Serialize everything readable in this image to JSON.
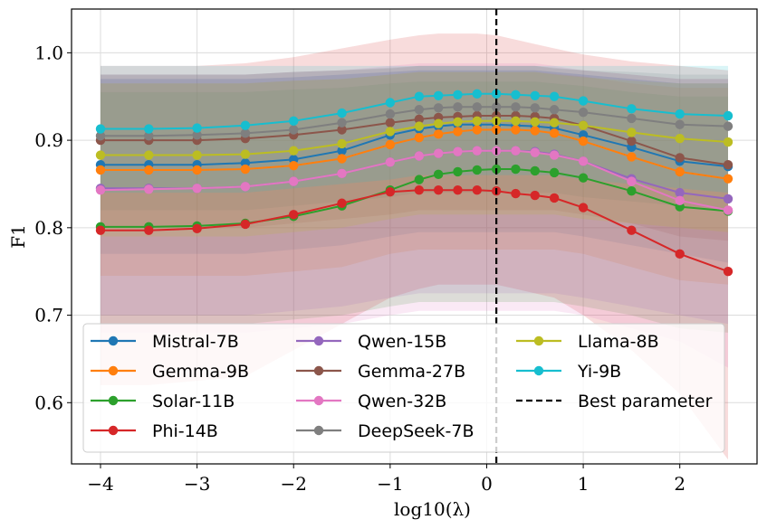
{
  "chart_data": {
    "type": "line",
    "title": "",
    "xlabel": "log10(λ)",
    "ylabel": "F1",
    "xlim": [
      -4.3,
      2.8
    ],
    "ylim": [
      0.53,
      1.05
    ],
    "xticks": [
      -4,
      -3,
      -2,
      -1,
      0,
      1,
      2
    ],
    "xtick_labels": [
      "−4",
      "−3",
      "−2",
      "−1",
      "0",
      "1",
      "2"
    ],
    "yticks": [
      0.6,
      0.7,
      0.8,
      0.9,
      1.0
    ],
    "ytick_labels": [
      "0.6",
      "0.7",
      "0.8",
      "0.9",
      "1.0"
    ],
    "grid": true,
    "legend_position": "bottom-center",
    "legend_columns": 3,
    "x": [
      -4,
      -3.5,
      -3,
      -2.5,
      -2,
      -1.5,
      -1,
      -0.7,
      -0.5,
      -0.3,
      -0.1,
      0.1,
      0.3,
      0.5,
      0.7,
      1,
      1.5,
      2,
      2.5
    ],
    "series": [
      {
        "name": "Mistral-7B",
        "color": "#1f77b4",
        "values": [
          0.872,
          0.872,
          0.872,
          0.874,
          0.878,
          0.888,
          0.906,
          0.913,
          0.916,
          0.918,
          0.918,
          0.918,
          0.917,
          0.916,
          0.914,
          0.906,
          0.892,
          0.876,
          0.87
        ],
        "band": [
          [
            0.77,
            0.97
          ],
          [
            0.77,
            0.97
          ],
          [
            0.77,
            0.97
          ],
          [
            0.77,
            0.97
          ],
          [
            0.775,
            0.972
          ],
          [
            0.78,
            0.975
          ],
          [
            0.79,
            0.978
          ],
          [
            0.795,
            0.98
          ],
          [
            0.795,
            0.98
          ],
          [
            0.795,
            0.98
          ],
          [
            0.795,
            0.98
          ],
          [
            0.795,
            0.98
          ],
          [
            0.795,
            0.98
          ],
          [
            0.795,
            0.98
          ],
          [
            0.795,
            0.978
          ],
          [
            0.79,
            0.975
          ],
          [
            0.78,
            0.97
          ],
          [
            0.77,
            0.965
          ],
          [
            0.76,
            0.965
          ]
        ]
      },
      {
        "name": "Gemma-9B",
        "color": "#ff7f0e",
        "values": [
          0.866,
          0.866,
          0.866,
          0.867,
          0.871,
          0.879,
          0.895,
          0.903,
          0.907,
          0.91,
          0.912,
          0.912,
          0.912,
          0.911,
          0.908,
          0.899,
          0.881,
          0.864,
          0.856
        ],
        "band": [
          [
            0.745,
            0.965
          ],
          [
            0.745,
            0.965
          ],
          [
            0.745,
            0.965
          ],
          [
            0.745,
            0.965
          ],
          [
            0.75,
            0.968
          ],
          [
            0.755,
            0.97
          ],
          [
            0.77,
            0.975
          ],
          [
            0.775,
            0.978
          ],
          [
            0.775,
            0.978
          ],
          [
            0.775,
            0.978
          ],
          [
            0.775,
            0.978
          ],
          [
            0.775,
            0.978
          ],
          [
            0.775,
            0.978
          ],
          [
            0.775,
            0.978
          ],
          [
            0.775,
            0.976
          ],
          [
            0.77,
            0.973
          ],
          [
            0.755,
            0.965
          ],
          [
            0.74,
            0.96
          ],
          [
            0.735,
            0.96
          ]
        ]
      },
      {
        "name": "Solar-11B",
        "color": "#2ca02c",
        "values": [
          0.801,
          0.801,
          0.802,
          0.805,
          0.813,
          0.825,
          0.843,
          0.855,
          0.861,
          0.864,
          0.866,
          0.867,
          0.867,
          0.865,
          0.863,
          0.857,
          0.842,
          0.824,
          0.819
        ],
        "band": [
          [
            0.69,
            0.955
          ],
          [
            0.69,
            0.955
          ],
          [
            0.69,
            0.955
          ],
          [
            0.69,
            0.955
          ],
          [
            0.695,
            0.958
          ],
          [
            0.7,
            0.96
          ],
          [
            0.71,
            0.965
          ],
          [
            0.715,
            0.967
          ],
          [
            0.715,
            0.967
          ],
          [
            0.715,
            0.967
          ],
          [
            0.715,
            0.967
          ],
          [
            0.715,
            0.967
          ],
          [
            0.715,
            0.967
          ],
          [
            0.715,
            0.967
          ],
          [
            0.715,
            0.965
          ],
          [
            0.71,
            0.962
          ],
          [
            0.7,
            0.955
          ],
          [
            0.685,
            0.95
          ],
          [
            0.68,
            0.95
          ]
        ]
      },
      {
        "name": "Phi-14B",
        "color": "#d62728",
        "values": [
          0.797,
          0.797,
          0.799,
          0.804,
          0.815,
          0.828,
          0.841,
          0.843,
          0.843,
          0.843,
          0.843,
          0.842,
          0.839,
          0.837,
          0.834,
          0.823,
          0.797,
          0.77,
          0.75
        ],
        "band": [
          [
            0.62,
            0.985
          ],
          [
            0.62,
            0.985
          ],
          [
            0.625,
            0.985
          ],
          [
            0.63,
            0.988
          ],
          [
            0.66,
            0.995
          ],
          [
            0.69,
            1.005
          ],
          [
            0.72,
            1.015
          ],
          [
            0.73,
            1.02
          ],
          [
            0.735,
            1.022
          ],
          [
            0.735,
            1.022
          ],
          [
            0.735,
            1.022
          ],
          [
            0.735,
            1.02
          ],
          [
            0.73,
            1.015
          ],
          [
            0.725,
            1.01
          ],
          [
            0.72,
            1.005
          ],
          [
            0.7,
            0.998
          ],
          [
            0.66,
            0.99
          ],
          [
            0.61,
            0.985
          ],
          [
            0.535,
            0.98
          ]
        ]
      },
      {
        "name": "Qwen-15B",
        "color": "#9467bd",
        "values": [
          0.845,
          0.845,
          0.845,
          0.847,
          0.853,
          0.862,
          0.875,
          0.882,
          0.885,
          0.887,
          0.888,
          0.888,
          0.888,
          0.887,
          0.884,
          0.876,
          0.856,
          0.84,
          0.833
        ],
        "band": [
          [
            0.7,
            0.97
          ],
          [
            0.7,
            0.97
          ],
          [
            0.7,
            0.97
          ],
          [
            0.7,
            0.97
          ],
          [
            0.705,
            0.972
          ],
          [
            0.71,
            0.975
          ],
          [
            0.72,
            0.978
          ],
          [
            0.725,
            0.98
          ],
          [
            0.725,
            0.98
          ],
          [
            0.725,
            0.98
          ],
          [
            0.725,
            0.98
          ],
          [
            0.725,
            0.98
          ],
          [
            0.725,
            0.98
          ],
          [
            0.725,
            0.98
          ],
          [
            0.725,
            0.978
          ],
          [
            0.72,
            0.975
          ],
          [
            0.71,
            0.97
          ],
          [
            0.7,
            0.965
          ],
          [
            0.69,
            0.965
          ]
        ]
      },
      {
        "name": "Gemma-27B",
        "color": "#8c564b",
        "values": [
          0.9,
          0.9,
          0.9,
          0.902,
          0.906,
          0.912,
          0.92,
          0.924,
          0.926,
          0.927,
          0.928,
          0.928,
          0.928,
          0.927,
          0.925,
          0.917,
          0.899,
          0.88,
          0.872
        ],
        "band": [
          [
            0.8,
            0.975
          ],
          [
            0.8,
            0.975
          ],
          [
            0.8,
            0.975
          ],
          [
            0.8,
            0.975
          ],
          [
            0.805,
            0.978
          ],
          [
            0.81,
            0.98
          ],
          [
            0.815,
            0.982
          ],
          [
            0.82,
            0.985
          ],
          [
            0.82,
            0.985
          ],
          [
            0.82,
            0.985
          ],
          [
            0.82,
            0.985
          ],
          [
            0.82,
            0.985
          ],
          [
            0.82,
            0.985
          ],
          [
            0.82,
            0.985
          ],
          [
            0.82,
            0.982
          ],
          [
            0.815,
            0.98
          ],
          [
            0.805,
            0.975
          ],
          [
            0.79,
            0.97
          ],
          [
            0.785,
            0.97
          ]
        ]
      },
      {
        "name": "Qwen-32B",
        "color": "#e377c2",
        "values": [
          0.843,
          0.844,
          0.845,
          0.847,
          0.853,
          0.862,
          0.875,
          0.882,
          0.885,
          0.887,
          0.888,
          0.888,
          0.888,
          0.886,
          0.883,
          0.876,
          0.853,
          0.831,
          0.82
        ],
        "band": [
          [
            0.68,
            0.975
          ],
          [
            0.68,
            0.975
          ],
          [
            0.68,
            0.975
          ],
          [
            0.68,
            0.975
          ],
          [
            0.685,
            0.978
          ],
          [
            0.69,
            0.98
          ],
          [
            0.7,
            0.985
          ],
          [
            0.705,
            0.988
          ],
          [
            0.705,
            0.988
          ],
          [
            0.705,
            0.988
          ],
          [
            0.705,
            0.988
          ],
          [
            0.705,
            0.988
          ],
          [
            0.705,
            0.988
          ],
          [
            0.705,
            0.988
          ],
          [
            0.705,
            0.985
          ],
          [
            0.7,
            0.98
          ],
          [
            0.685,
            0.975
          ],
          [
            0.67,
            0.97
          ],
          [
            0.64,
            0.97
          ]
        ]
      },
      {
        "name": "DeepSeek-7B",
        "color": "#7f7f7f",
        "values": [
          0.905,
          0.905,
          0.906,
          0.908,
          0.912,
          0.92,
          0.93,
          0.935,
          0.937,
          0.938,
          0.938,
          0.938,
          0.938,
          0.937,
          0.935,
          0.932,
          0.925,
          0.918,
          0.916
        ],
        "band": [
          [
            0.82,
            0.975
          ],
          [
            0.82,
            0.975
          ],
          [
            0.82,
            0.975
          ],
          [
            0.82,
            0.975
          ],
          [
            0.825,
            0.978
          ],
          [
            0.83,
            0.98
          ],
          [
            0.835,
            0.983
          ],
          [
            0.84,
            0.985
          ],
          [
            0.84,
            0.985
          ],
          [
            0.84,
            0.985
          ],
          [
            0.84,
            0.985
          ],
          [
            0.84,
            0.985
          ],
          [
            0.84,
            0.985
          ],
          [
            0.84,
            0.985
          ],
          [
            0.84,
            0.983
          ],
          [
            0.835,
            0.98
          ],
          [
            0.83,
            0.978
          ],
          [
            0.825,
            0.975
          ],
          [
            0.82,
            0.975
          ]
        ]
      },
      {
        "name": "Llama-8B",
        "color": "#bcbd22",
        "values": [
          0.883,
          0.883,
          0.883,
          0.884,
          0.888,
          0.896,
          0.91,
          0.916,
          0.919,
          0.921,
          0.922,
          0.922,
          0.922,
          0.921,
          0.92,
          0.917,
          0.909,
          0.902,
          0.898
        ],
        "band": [
          [
            0.79,
            0.965
          ],
          [
            0.79,
            0.965
          ],
          [
            0.79,
            0.965
          ],
          [
            0.79,
            0.965
          ],
          [
            0.795,
            0.968
          ],
          [
            0.8,
            0.97
          ],
          [
            0.81,
            0.975
          ],
          [
            0.815,
            0.978
          ],
          [
            0.815,
            0.978
          ],
          [
            0.815,
            0.978
          ],
          [
            0.815,
            0.978
          ],
          [
            0.815,
            0.978
          ],
          [
            0.815,
            0.978
          ],
          [
            0.815,
            0.978
          ],
          [
            0.815,
            0.975
          ],
          [
            0.81,
            0.972
          ],
          [
            0.805,
            0.968
          ],
          [
            0.8,
            0.965
          ],
          [
            0.795,
            0.965
          ]
        ]
      },
      {
        "name": "Yi-9B",
        "color": "#17becf",
        "values": [
          0.913,
          0.913,
          0.914,
          0.917,
          0.922,
          0.931,
          0.943,
          0.95,
          0.951,
          0.952,
          0.953,
          0.953,
          0.952,
          0.951,
          0.95,
          0.945,
          0.936,
          0.93,
          0.928
        ],
        "band": [
          [
            0.84,
            0.985
          ],
          [
            0.84,
            0.985
          ],
          [
            0.84,
            0.985
          ],
          [
            0.84,
            0.985
          ],
          [
            0.845,
            0.985
          ],
          [
            0.85,
            0.985
          ],
          [
            0.855,
            0.985
          ],
          [
            0.86,
            0.985
          ],
          [
            0.86,
            0.985
          ],
          [
            0.86,
            0.985
          ],
          [
            0.86,
            0.985
          ],
          [
            0.86,
            0.985
          ],
          [
            0.86,
            0.985
          ],
          [
            0.86,
            0.985
          ],
          [
            0.86,
            0.985
          ],
          [
            0.855,
            0.985
          ],
          [
            0.85,
            0.985
          ],
          [
            0.845,
            0.985
          ],
          [
            0.84,
            0.985
          ]
        ]
      }
    ],
    "reference_line": {
      "name": "Best parameter",
      "x": 0.1,
      "color": "#000000"
    }
  }
}
